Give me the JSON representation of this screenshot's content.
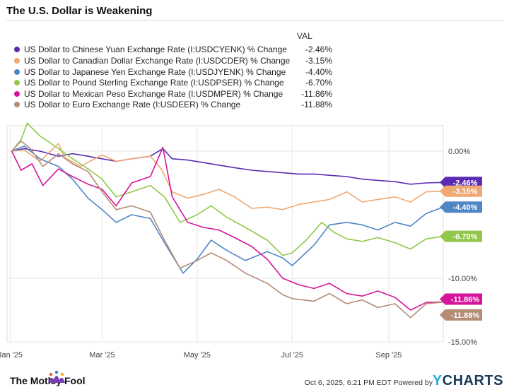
{
  "title": "The U.S. Dollar is Weakening",
  "legend": {
    "val_header": "VAL",
    "items": [
      {
        "label": "US Dollar to Chinese Yuan Exchange Rate (I:USDCYENK) % Change",
        "value": "-2.46%",
        "color": "#5b2bb3"
      },
      {
        "label": "US Dollar to Canadian Dollar Exchange Rate (I:USDCDER) % Change",
        "value": "-3.15%",
        "color": "#f0a872"
      },
      {
        "label": "US Dollar to Japanese Yen Exchange Rate (I:USDJYENK) % Change",
        "value": "-4.40%",
        "color": "#4f86c6"
      },
      {
        "label": "US Dollar to Pound Sterling Exchange Rate (I:USDPSER) % Change",
        "value": "-6.70%",
        "color": "#92c84a"
      },
      {
        "label": "US Dollar to Mexican Peso Exchange Rate (I:USDMPER) % Change",
        "value": "-11.86%",
        "color": "#d6149a"
      },
      {
        "label": "US Dollar to Euro Exchange Rate (I:USDEER) % Change",
        "value": "-11.88%",
        "color": "#b58c74"
      }
    ]
  },
  "chart_data": {
    "type": "line",
    "ylim": [
      -15,
      2
    ],
    "y_ticks": [
      {
        "value": 0,
        "label": "0.00%"
      },
      {
        "value": -10,
        "label": "-10.00%"
      },
      {
        "value": -15,
        "label": "-15.00%"
      }
    ],
    "x_ticks": [
      {
        "date": "2025-01-01",
        "label": "Jan '25"
      },
      {
        "date": "2025-03-01",
        "label": "Mar '25"
      },
      {
        "date": "2025-05-01",
        "label": "May '25"
      },
      {
        "date": "2025-07-01",
        "label": "Jul '25"
      },
      {
        "date": "2025-09-01",
        "label": "Sep '25"
      }
    ],
    "x_range": [
      "2024-12-30",
      "2025-10-06"
    ],
    "grid": true,
    "series": [
      {
        "name": "US Dollar to Chinese Yuan Exchange Rate (I:USDCYENK) % Change",
        "end_label": "-2.46%",
        "color": "#5b2bb3",
        "points": [
          [
            "2025-01-02",
            0.0
          ],
          [
            "2025-01-10",
            0.2
          ],
          [
            "2025-01-20",
            0.0
          ],
          [
            "2025-02-01",
            -0.4
          ],
          [
            "2025-02-10",
            -0.2
          ],
          [
            "2025-02-20",
            -0.4
          ],
          [
            "2025-03-01",
            -0.6
          ],
          [
            "2025-03-10",
            -0.8
          ],
          [
            "2025-03-20",
            -0.6
          ],
          [
            "2025-04-01",
            -0.4
          ],
          [
            "2025-04-09",
            0.2
          ],
          [
            "2025-04-15",
            -0.6
          ],
          [
            "2025-04-25",
            -0.7
          ],
          [
            "2025-05-05",
            -0.9
          ],
          [
            "2025-05-15",
            -1.1
          ],
          [
            "2025-05-25",
            -1.3
          ],
          [
            "2025-06-05",
            -1.5
          ],
          [
            "2025-06-15",
            -1.6
          ],
          [
            "2025-06-25",
            -1.7
          ],
          [
            "2025-07-05",
            -1.8
          ],
          [
            "2025-07-15",
            -1.8
          ],
          [
            "2025-07-25",
            -1.9
          ],
          [
            "2025-08-05",
            -2.0
          ],
          [
            "2025-08-15",
            -2.2
          ],
          [
            "2025-08-25",
            -2.3
          ],
          [
            "2025-09-05",
            -2.4
          ],
          [
            "2025-09-15",
            -2.6
          ],
          [
            "2025-09-25",
            -2.5
          ],
          [
            "2025-10-06",
            -2.46
          ]
        ]
      },
      {
        "name": "US Dollar to Canadian Dollar Exchange Rate (I:USDCDER) % Change",
        "end_label": "-3.15%",
        "color": "#f0a872",
        "points": [
          [
            "2025-01-02",
            0.0
          ],
          [
            "2025-01-10",
            0.1
          ],
          [
            "2025-01-20",
            -0.8
          ],
          [
            "2025-02-01",
            0.6
          ],
          [
            "2025-02-05",
            -0.5
          ],
          [
            "2025-02-15",
            -1.2
          ],
          [
            "2025-03-01",
            -0.3
          ],
          [
            "2025-03-10",
            -0.8
          ],
          [
            "2025-03-20",
            -0.6
          ],
          [
            "2025-04-01",
            -0.4
          ],
          [
            "2025-04-08",
            -1.4
          ],
          [
            "2025-04-15",
            -3.2
          ],
          [
            "2025-04-25",
            -3.7
          ],
          [
            "2025-05-05",
            -3.4
          ],
          [
            "2025-05-15",
            -3.0
          ],
          [
            "2025-05-25",
            -3.6
          ],
          [
            "2025-06-05",
            -4.5
          ],
          [
            "2025-06-15",
            -4.4
          ],
          [
            "2025-06-25",
            -4.6
          ],
          [
            "2025-07-05",
            -4.2
          ],
          [
            "2025-07-15",
            -4.0
          ],
          [
            "2025-07-25",
            -3.8
          ],
          [
            "2025-08-05",
            -3.2
          ],
          [
            "2025-08-15",
            -4.0
          ],
          [
            "2025-08-25",
            -3.8
          ],
          [
            "2025-09-05",
            -3.6
          ],
          [
            "2025-09-15",
            -4.0
          ],
          [
            "2025-09-25",
            -3.2
          ],
          [
            "2025-10-06",
            -3.15
          ]
        ]
      },
      {
        "name": "US Dollar to Japanese Yen Exchange Rate (I:USDJYENK) % Change",
        "end_label": "-4.40%",
        "color": "#4f86c6",
        "points": [
          [
            "2025-01-02",
            0.0
          ],
          [
            "2025-01-10",
            0.4
          ],
          [
            "2025-01-20",
            -0.6
          ],
          [
            "2025-02-01",
            -1.2
          ],
          [
            "2025-02-10",
            -2.2
          ],
          [
            "2025-02-20",
            -3.7
          ],
          [
            "2025-03-01",
            -4.6
          ],
          [
            "2025-03-10",
            -5.6
          ],
          [
            "2025-03-20",
            -5.0
          ],
          [
            "2025-04-01",
            -5.3
          ],
          [
            "2025-04-10",
            -7.2
          ],
          [
            "2025-04-22",
            -9.6
          ],
          [
            "2025-05-01",
            -8.5
          ],
          [
            "2025-05-10",
            -7.0
          ],
          [
            "2025-05-20",
            -7.8
          ],
          [
            "2025-06-01",
            -8.6
          ],
          [
            "2025-06-15",
            -7.9
          ],
          [
            "2025-06-25",
            -8.4
          ],
          [
            "2025-07-01",
            -9.0
          ],
          [
            "2025-07-15",
            -7.4
          ],
          [
            "2025-07-25",
            -5.8
          ],
          [
            "2025-08-05",
            -5.6
          ],
          [
            "2025-08-15",
            -5.8
          ],
          [
            "2025-08-25",
            -6.2
          ],
          [
            "2025-09-05",
            -5.6
          ],
          [
            "2025-09-15",
            -5.9
          ],
          [
            "2025-09-25",
            -4.9
          ],
          [
            "2025-10-06",
            -4.4
          ]
        ]
      },
      {
        "name": "US Dollar to Pound Sterling Exchange Rate (I:USDPSER) % Change",
        "end_label": "-6.70%",
        "color": "#92c84a",
        "points": [
          [
            "2025-01-02",
            0.0
          ],
          [
            "2025-01-08",
            0.9
          ],
          [
            "2025-01-12",
            2.2
          ],
          [
            "2025-01-20",
            1.2
          ],
          [
            "2025-02-01",
            0.2
          ],
          [
            "2025-02-10",
            -0.6
          ],
          [
            "2025-02-20",
            -1.4
          ],
          [
            "2025-03-01",
            -2.2
          ],
          [
            "2025-03-10",
            -3.6
          ],
          [
            "2025-03-20",
            -3.2
          ],
          [
            "2025-04-01",
            -2.7
          ],
          [
            "2025-04-10",
            -3.6
          ],
          [
            "2025-04-20",
            -5.6
          ],
          [
            "2025-05-01",
            -5.0
          ],
          [
            "2025-05-10",
            -4.3
          ],
          [
            "2025-05-20",
            -5.2
          ],
          [
            "2025-06-01",
            -6.0
          ],
          [
            "2025-06-15",
            -7.0
          ],
          [
            "2025-06-25",
            -8.2
          ],
          [
            "2025-07-01",
            -8.0
          ],
          [
            "2025-07-10",
            -7.0
          ],
          [
            "2025-07-20",
            -5.6
          ],
          [
            "2025-07-28",
            -6.4
          ],
          [
            "2025-08-05",
            -6.9
          ],
          [
            "2025-08-15",
            -7.1
          ],
          [
            "2025-08-25",
            -6.8
          ],
          [
            "2025-09-05",
            -7.2
          ],
          [
            "2025-09-15",
            -7.7
          ],
          [
            "2025-09-25",
            -6.9
          ],
          [
            "2025-10-06",
            -6.7
          ]
        ]
      },
      {
        "name": "US Dollar to Mexican Peso Exchange Rate (I:USDMPER) % Change",
        "end_label": "-11.86%",
        "color": "#d6149a",
        "points": [
          [
            "2025-01-02",
            0.0
          ],
          [
            "2025-01-08",
            -1.5
          ],
          [
            "2025-01-15",
            -1.0
          ],
          [
            "2025-01-22",
            -2.7
          ],
          [
            "2025-02-01",
            -1.4
          ],
          [
            "2025-02-10",
            -2.0
          ],
          [
            "2025-02-20",
            -2.6
          ],
          [
            "2025-03-01",
            -3.0
          ],
          [
            "2025-03-10",
            -4.3
          ],
          [
            "2025-03-20",
            -2.5
          ],
          [
            "2025-04-01",
            -2.0
          ],
          [
            "2025-04-09",
            0.3
          ],
          [
            "2025-04-15",
            -3.6
          ],
          [
            "2025-04-25",
            -5.6
          ],
          [
            "2025-05-05",
            -6.0
          ],
          [
            "2025-05-15",
            -6.2
          ],
          [
            "2025-05-25",
            -6.8
          ],
          [
            "2025-06-05",
            -7.5
          ],
          [
            "2025-06-15",
            -8.5
          ],
          [
            "2025-06-25",
            -10.0
          ],
          [
            "2025-07-05",
            -10.5
          ],
          [
            "2025-07-15",
            -10.8
          ],
          [
            "2025-07-25",
            -10.4
          ],
          [
            "2025-08-05",
            -11.2
          ],
          [
            "2025-08-15",
            -11.4
          ],
          [
            "2025-08-25",
            -11.0
          ],
          [
            "2025-09-05",
            -11.5
          ],
          [
            "2025-09-15",
            -12.5
          ],
          [
            "2025-09-25",
            -11.9
          ],
          [
            "2025-10-06",
            -11.86
          ]
        ]
      },
      {
        "name": "US Dollar to Euro Exchange Rate (I:USDEER) % Change",
        "end_label": "-11.88%",
        "color": "#b58c74",
        "points": [
          [
            "2025-01-02",
            0.0
          ],
          [
            "2025-01-08",
            0.8
          ],
          [
            "2025-01-14",
            0.2
          ],
          [
            "2025-01-22",
            -1.2
          ],
          [
            "2025-02-01",
            -0.2
          ],
          [
            "2025-02-10",
            -1.0
          ],
          [
            "2025-02-20",
            -1.6
          ],
          [
            "2025-03-01",
            -3.2
          ],
          [
            "2025-03-10",
            -4.6
          ],
          [
            "2025-03-20",
            -4.3
          ],
          [
            "2025-04-01",
            -4.8
          ],
          [
            "2025-04-10",
            -7.0
          ],
          [
            "2025-04-20",
            -9.2
          ],
          [
            "2025-05-01",
            -8.6
          ],
          [
            "2025-05-10",
            -8.0
          ],
          [
            "2025-05-20",
            -8.6
          ],
          [
            "2025-06-01",
            -9.6
          ],
          [
            "2025-06-15",
            -10.4
          ],
          [
            "2025-06-25",
            -11.3
          ],
          [
            "2025-07-01",
            -11.6
          ],
          [
            "2025-07-15",
            -11.8
          ],
          [
            "2025-07-25",
            -11.2
          ],
          [
            "2025-08-05",
            -12.0
          ],
          [
            "2025-08-15",
            -11.7
          ],
          [
            "2025-08-25",
            -12.3
          ],
          [
            "2025-09-05",
            -12.0
          ],
          [
            "2025-09-15",
            -13.1
          ],
          [
            "2025-09-25",
            -12.0
          ],
          [
            "2025-10-06",
            -11.88
          ]
        ]
      }
    ]
  },
  "footer": {
    "logo_text": "The Motley Fool",
    "timestamp": "Oct 6, 2025, 6:21 PM EDT Powered by",
    "brand_y": "Y",
    "brand_rest": "CHARTS"
  }
}
